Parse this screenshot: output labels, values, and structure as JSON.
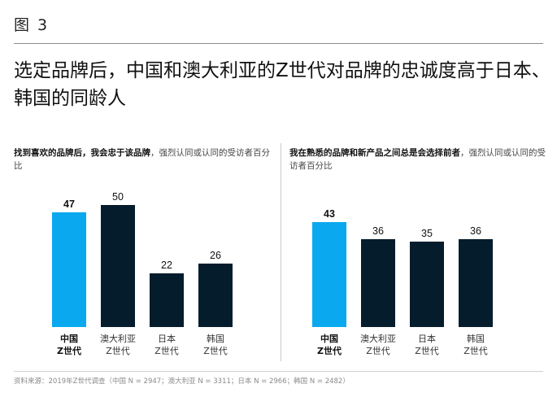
{
  "figure": {
    "label": "图 3"
  },
  "headline": "选定品牌后，中国和澳大利亚的Z世代对品牌的忠诚度高于日本、韩国的同龄人",
  "colors": {
    "highlight": "#0aa9ef",
    "dark": "#051c2c",
    "rule": "#8c8c8c"
  },
  "chart_data": [
    {
      "type": "bar",
      "subtitle_bold": "找到喜欢的品牌后，我会忠于该品牌",
      "subtitle_rest": "，强烈认同或认同的受访者百分比",
      "categories": [
        [
          "中国",
          "Z世代"
        ],
        [
          "澳大利亚",
          "Z世代"
        ],
        [
          "日本",
          "Z世代"
        ],
        [
          "韩国",
          "Z世代"
        ]
      ],
      "values": [
        47,
        50,
        22,
        26
      ],
      "highlight_index": 0,
      "ylim": [
        0,
        55
      ]
    },
    {
      "type": "bar",
      "subtitle_bold": "我在熟悉的品牌和新产品之间总是会选择前者",
      "subtitle_rest": "，强烈认同或认同的受访者百分比",
      "categories": [
        [
          "中国",
          "Z世代"
        ],
        [
          "澳大利亚",
          "Z世代"
        ],
        [
          "日本",
          "Z世代"
        ],
        [
          "韩国",
          "Z世代"
        ]
      ],
      "values": [
        43,
        36,
        35,
        36
      ],
      "highlight_index": 0,
      "ylim": [
        0,
        55
      ]
    }
  ],
  "footer": "资料来源：2019年Z世代调查（中国 N = 2947；澳大利亚 N = 3311；日本 N = 2966；韩国 N = 2482）"
}
